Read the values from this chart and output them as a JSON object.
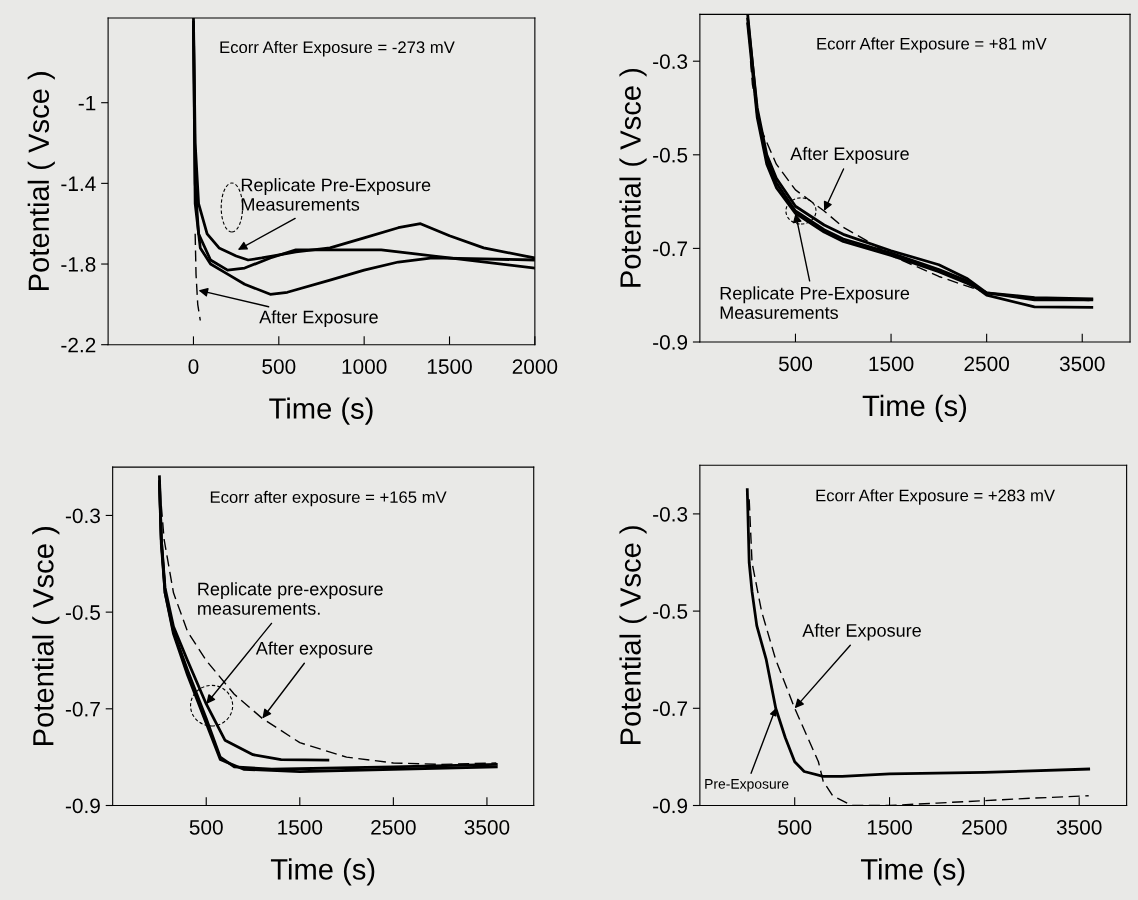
{
  "chart_data": [
    {
      "type": "line",
      "xlabel": "Time (s)",
      "ylabel": "Potential ( Vsce )",
      "xlim": [
        -500,
        2000
      ],
      "ylim": [
        -2.2,
        -0.58
      ],
      "xticks": [
        0,
        500,
        1000,
        1500,
        2000
      ],
      "yticks": [
        -2.2,
        -1.8,
        -1.4,
        -1
      ],
      "annotations": [
        "Ecorr After Exposure = -273 mV",
        {
          "text": "Replicate Pre-Exposure\nMeasurements",
          "x": 260,
          "y": -1.73
        },
        {
          "text": "After Exposure",
          "x": 30,
          "y": -1.93
        }
      ],
      "series": [
        {
          "color": "#000000",
          "line_style": "solid",
          "x": [
            0,
            10,
            30,
            80,
            150,
            250,
            320,
            400,
            600,
            800,
            1000,
            1200,
            1330,
            1500,
            1700,
            2000
          ],
          "values": [
            -0.58,
            -1.2,
            -1.5,
            -1.65,
            -1.72,
            -1.76,
            -1.78,
            -1.77,
            -1.74,
            -1.72,
            -1.67,
            -1.62,
            -1.6,
            -1.66,
            -1.72,
            -1.77
          ]
        },
        {
          "color": "#000000",
          "line_style": "solid",
          "x": [
            0,
            10,
            30,
            100,
            200,
            300,
            450,
            600,
            1100,
            1300,
            1500,
            2000
          ],
          "values": [
            -0.6,
            -1.4,
            -1.65,
            -1.78,
            -1.83,
            -1.82,
            -1.77,
            -1.73,
            -1.73,
            -1.75,
            -1.77,
            -1.82
          ]
        },
        {
          "color": "#000000",
          "line_style": "solid",
          "x": [
            0,
            10,
            40,
            100,
            200,
            300,
            450,
            550,
            800,
            1000,
            1200,
            1400,
            2000
          ],
          "values": [
            -0.62,
            -1.5,
            -1.72,
            -1.8,
            -1.85,
            -1.9,
            -1.95,
            -1.94,
            -1.88,
            -1.83,
            -1.79,
            -1.77,
            -1.78
          ]
        },
        {
          "color": "#000000",
          "line_style": "dashed",
          "x": [
            10,
            15,
            25,
            40
          ],
          "values": [
            -1.65,
            -1.85,
            -2.0,
            -2.08
          ]
        }
      ]
    },
    {
      "type": "line",
      "xlabel": "Time (s)",
      "ylabel": "Potential ( Vsce )",
      "xlim": [
        -500,
        4000
      ],
      "ylim": [
        -0.9,
        -0.2
      ],
      "xticks": [
        500,
        1500,
        2500,
        3500
      ],
      "yticks": [
        -0.9,
        -0.7,
        -0.5,
        -0.3
      ],
      "annotations": [
        "Ecorr After Exposure = +81 mV",
        {
          "text": "After Exposure",
          "x": 800,
          "y": -0.62
        },
        {
          "text": "Replicate Pre-Exposure\nMeasurements",
          "x": 500,
          "y": -0.625
        }
      ],
      "series": [
        {
          "color": "#000000",
          "line_style": "solid",
          "x": [
            0,
            100,
            200,
            300,
            500,
            800,
            1000,
            1500,
            2000,
            2300,
            2500,
            3000,
            3600
          ],
          "values": [
            -0.2,
            -0.41,
            -0.51,
            -0.56,
            -0.62,
            -0.66,
            -0.68,
            -0.71,
            -0.745,
            -0.77,
            -0.8,
            -0.825,
            -0.826
          ]
        },
        {
          "color": "#000000",
          "line_style": "solid",
          "x": [
            0,
            100,
            200,
            300,
            500,
            800,
            1000,
            1500,
            2000,
            2300,
            2500,
            3000,
            3600
          ],
          "values": [
            -0.21,
            -0.4,
            -0.5,
            -0.55,
            -0.61,
            -0.65,
            -0.67,
            -0.705,
            -0.735,
            -0.765,
            -0.795,
            -0.81,
            -0.81
          ]
        },
        {
          "color": "#000000",
          "line_style": "solid",
          "x": [
            0,
            100,
            200,
            300,
            500,
            800,
            1000,
            1500,
            2000,
            2300,
            2500,
            3000,
            3600
          ],
          "values": [
            -0.22,
            -0.42,
            -0.52,
            -0.57,
            -0.625,
            -0.665,
            -0.685,
            -0.715,
            -0.75,
            -0.775,
            -0.795,
            -0.805,
            -0.808
          ]
        },
        {
          "color": "#000000",
          "line_style": "dashed",
          "x": [
            30,
            50,
            150,
            300,
            500,
            800,
            1000,
            1300,
            1500,
            2000,
            2500,
            3000,
            3600
          ],
          "values": [
            -0.3,
            -0.35,
            -0.45,
            -0.52,
            -0.575,
            -0.62,
            -0.655,
            -0.69,
            -0.715,
            -0.76,
            -0.795,
            -0.805,
            -0.812
          ]
        }
      ]
    },
    {
      "type": "line",
      "xlabel": "Time (s)",
      "ylabel": "Potential ( Vsce )",
      "xlim": [
        -500,
        4000
      ],
      "ylim": [
        -0.9,
        -0.2
      ],
      "xticks": [
        500,
        1500,
        2500,
        3500
      ],
      "yticks": [
        -0.9,
        -0.7,
        -0.5,
        -0.3
      ],
      "annotations": [
        "Ecorr after exposure = +165 mV",
        {
          "text": "Replicate pre-exposure\nmeasurements.",
          "x": 500,
          "y": -0.69
        },
        {
          "text": "After exposure",
          "x": 1100,
          "y": -0.72
        }
      ],
      "series": [
        {
          "color": "#000000",
          "line_style": "solid",
          "x": [
            0,
            20,
            60,
            150,
            300,
            500,
            700,
            1000,
            1300,
            1800
          ],
          "values": [
            -0.22,
            -0.35,
            -0.45,
            -0.53,
            -0.6,
            -0.69,
            -0.765,
            -0.795,
            -0.805,
            -0.806
          ]
        },
        {
          "color": "#000000",
          "line_style": "solid",
          "x": [
            0,
            20,
            60,
            150,
            300,
            500,
            650,
            800,
            1200,
            2500,
            3600
          ],
          "values": [
            -0.23,
            -0.35,
            -0.46,
            -0.54,
            -0.62,
            -0.72,
            -0.8,
            -0.82,
            -0.825,
            -0.82,
            -0.815
          ]
        },
        {
          "color": "#000000",
          "line_style": "solid",
          "x": [
            0,
            20,
            60,
            150,
            300,
            500,
            650,
            900,
            1500,
            2500,
            3600
          ],
          "values": [
            -0.235,
            -0.36,
            -0.46,
            -0.545,
            -0.63,
            -0.73,
            -0.805,
            -0.825,
            -0.83,
            -0.825,
            -0.82
          ]
        },
        {
          "color": "#000000",
          "line_style": "dashed",
          "x": [
            20,
            50,
            150,
            300,
            500,
            800,
            1100,
            1500,
            2000,
            2500,
            3000,
            3600
          ],
          "values": [
            -0.28,
            -0.35,
            -0.46,
            -0.54,
            -0.6,
            -0.67,
            -0.72,
            -0.77,
            -0.8,
            -0.812,
            -0.815,
            -0.812
          ]
        }
      ]
    },
    {
      "type": "line",
      "xlabel": "Time (s)",
      "ylabel": "Potential ( Vsce )",
      "xlim": [
        -500,
        4000
      ],
      "ylim": [
        -0.9,
        -0.2
      ],
      "xticks": [
        500,
        1500,
        2500,
        3500
      ],
      "yticks": [
        -0.9,
        -0.7,
        -0.5,
        -0.3
      ],
      "annotations": [
        "Ecorr After Exposure = +283 mV",
        {
          "text": "After Exposure",
          "x": 500,
          "y": -0.7
        },
        {
          "text": "Pre-Exposure",
          "x": 300,
          "y": -0.7
        }
      ],
      "series": [
        {
          "color": "#000000",
          "line_style": "solid",
          "x": [
            0,
            20,
            50,
            100,
            200,
            300,
            400,
            500,
            600,
            800,
            1000,
            1500,
            2500,
            3600
          ],
          "values": [
            -0.25,
            -0.4,
            -0.46,
            -0.53,
            -0.6,
            -0.7,
            -0.76,
            -0.81,
            -0.83,
            -0.84,
            -0.84,
            -0.835,
            -0.832,
            -0.825
          ]
        },
        {
          "color": "#000000",
          "line_style": "dashed",
          "x": [
            20,
            50,
            150,
            300,
            500,
            750,
            800,
            900,
            1100,
            1500,
            2000,
            2500,
            3000,
            3600
          ],
          "values": [
            -0.27,
            -0.4,
            -0.5,
            -0.6,
            -0.7,
            -0.81,
            -0.85,
            -0.88,
            -0.9,
            -0.9,
            -0.895,
            -0.89,
            -0.885,
            -0.88
          ]
        }
      ]
    }
  ]
}
